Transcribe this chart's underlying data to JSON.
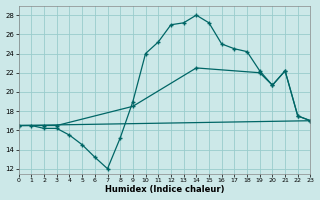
{
  "xlabel": "Humidex (Indice chaleur)",
  "bg_color": "#cce8e8",
  "grid_color": "#99cccc",
  "line_color": "#006666",
  "line1_x": [
    0,
    1,
    2,
    3,
    4,
    5,
    6,
    7,
    8,
    9,
    10,
    11,
    12,
    13,
    14,
    15,
    16,
    17,
    18,
    19,
    20,
    21,
    22,
    23
  ],
  "line1_y": [
    16.5,
    16.5,
    16.2,
    16.2,
    15.5,
    14.5,
    13.2,
    12.0,
    15.2,
    19.0,
    24.0,
    25.2,
    27.0,
    27.2,
    28.0,
    27.2,
    25.0,
    24.5,
    24.2,
    22.2,
    20.7,
    22.2,
    17.5,
    17.0
  ],
  "line2_x": [
    0,
    2,
    3,
    9,
    14,
    19,
    20,
    21,
    22,
    23
  ],
  "line2_y": [
    16.5,
    16.5,
    16.5,
    18.5,
    22.5,
    22.0,
    20.7,
    22.2,
    17.5,
    17.0
  ],
  "line3_x": [
    0,
    23
  ],
  "line3_y": [
    16.5,
    17.0
  ],
  "xlim": [
    0,
    23
  ],
  "ylim": [
    11.5,
    29
  ],
  "yticks": [
    12,
    14,
    16,
    18,
    20,
    22,
    24,
    26,
    28
  ],
  "xticks": [
    0,
    1,
    2,
    3,
    4,
    5,
    6,
    7,
    8,
    9,
    10,
    11,
    12,
    13,
    14,
    15,
    16,
    17,
    18,
    19,
    20,
    21,
    22,
    23
  ]
}
